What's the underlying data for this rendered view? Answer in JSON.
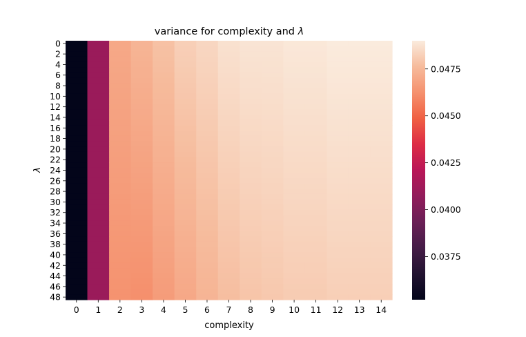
{
  "chart_data": {
    "type": "heatmap",
    "title": "variance for complexity and",
    "title_symbol": "λ",
    "xlabel": "complexity",
    "ylabel": "λ",
    "x_ticks": [
      "0",
      "1",
      "2",
      "3",
      "4",
      "5",
      "6",
      "7",
      "8",
      "9",
      "10",
      "11",
      "12",
      "13",
      "14"
    ],
    "y_ticks": [
      "0",
      "2",
      "4",
      "6",
      "8",
      "10",
      "12",
      "14",
      "16",
      "18",
      "20",
      "22",
      "24",
      "26",
      "28",
      "30",
      "32",
      "34",
      "36",
      "38",
      "40",
      "42",
      "44",
      "46",
      "48"
    ],
    "y_count": 49,
    "colorbar": {
      "min": 0.0352,
      "max": 0.049,
      "ticks": [
        0.0375,
        0.04,
        0.0425,
        0.045,
        0.0475
      ],
      "tick_labels": [
        "0.0375",
        "0.0400",
        "0.0425",
        "0.0450",
        "0.0475"
      ],
      "colormap": "rocket"
    },
    "column_values_top": [
      0.0352,
      0.041,
      0.047,
      0.0474,
      0.0478,
      0.0482,
      0.0484,
      0.0487,
      0.0488,
      0.0488,
      0.0489,
      0.0489,
      0.049,
      0.049,
      0.049
    ],
    "column_values_bottom": [
      0.0352,
      0.041,
      0.0463,
      0.0462,
      0.0466,
      0.047,
      0.0474,
      0.0477,
      0.0479,
      0.048,
      0.0481,
      0.0481,
      0.0482,
      0.0482,
      0.0482
    ]
  }
}
